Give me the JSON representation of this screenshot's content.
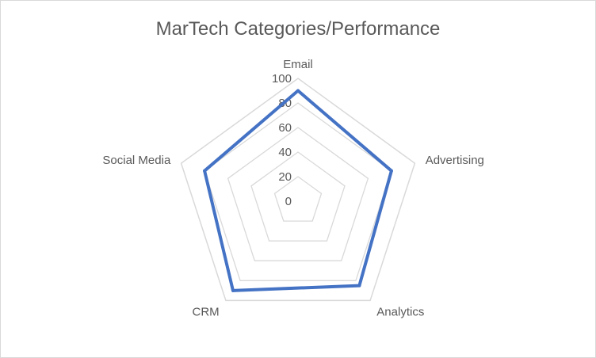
{
  "chart_data": {
    "type": "radar",
    "title": "MarTech Categories/Performance",
    "categories": [
      "Email",
      "Advertising",
      "Analytics",
      "CRM",
      "Social Media"
    ],
    "series": [
      {
        "values": [
          90,
          80,
          85,
          90,
          80
        ]
      }
    ],
    "rlim": [
      0,
      100
    ],
    "ticks": [
      "0",
      "20",
      "40",
      "60",
      "80",
      "100"
    ],
    "grid": true,
    "legend": "none",
    "colors": {
      "series": "#4472c4",
      "grid": "#d9d9d9",
      "text": "#595959"
    }
  }
}
